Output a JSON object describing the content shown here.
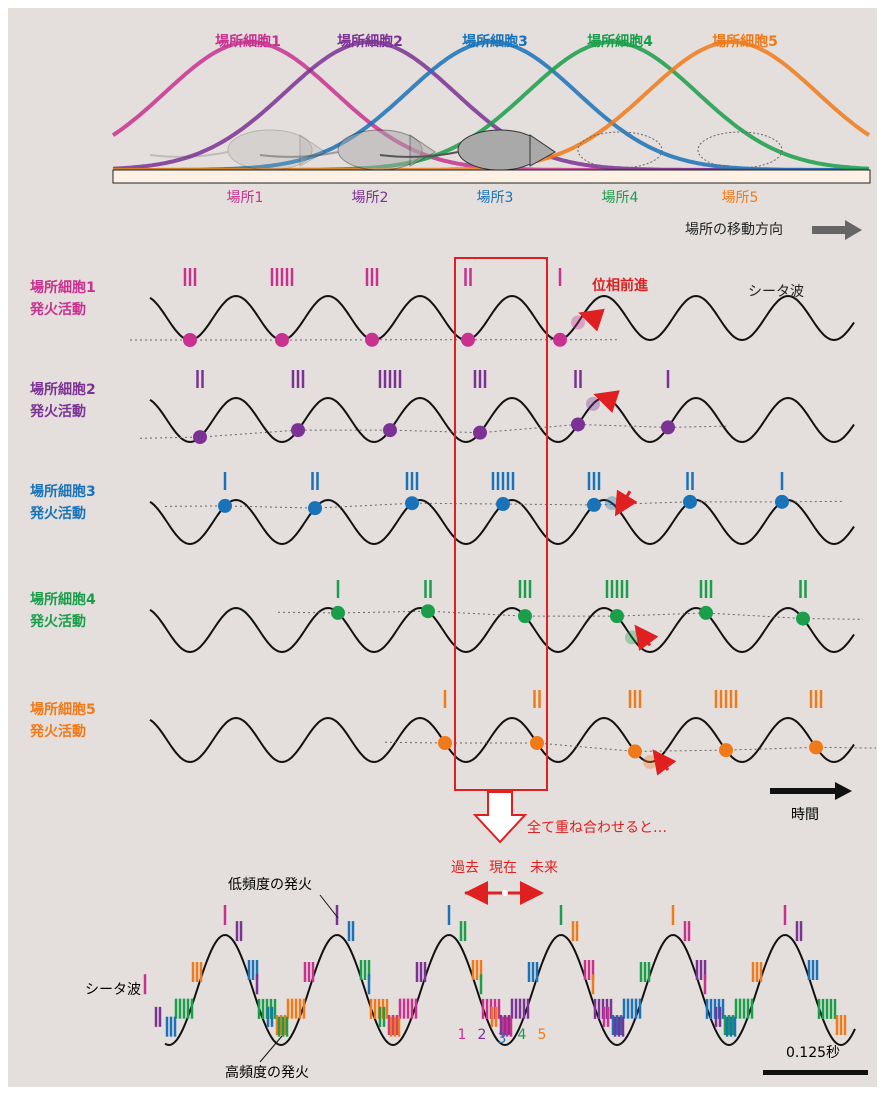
{
  "place_cells": [
    {
      "label": "場所細胞1",
      "color": "#c8318f"
    },
    {
      "label": "場所細胞2",
      "color": "#7b3294"
    },
    {
      "label": "場所細胞3",
      "color": "#1a73b8"
    },
    {
      "label": "場所細胞4",
      "color": "#1a9e4a"
    },
    {
      "label": "場所細胞5",
      "color": "#f07a1a"
    }
  ],
  "places": [
    "場所1",
    "場所2",
    "場所3",
    "場所4",
    "場所5"
  ],
  "direction_label": "場所の移動方向",
  "rows": [
    {
      "name": "場所細胞1",
      "activity": "発火活動",
      "burst_counts": [
        3,
        5,
        3,
        2,
        1
      ]
    },
    {
      "name": "場所細胞2",
      "activity": "発火活動",
      "burst_counts": [
        2,
        3,
        5,
        3,
        2,
        1
      ]
    },
    {
      "name": "場所細胞3",
      "activity": "発火活動",
      "burst_counts": [
        1,
        2,
        3,
        5,
        3,
        2,
        1
      ]
    },
    {
      "name": "場所細胞4",
      "activity": "発火活動",
      "burst_counts": [
        1,
        2,
        3,
        5,
        3,
        2
      ]
    },
    {
      "name": "場所細胞5",
      "activity": "発火活動",
      "burst_counts": [
        1,
        2,
        3,
        5,
        3
      ]
    }
  ],
  "phase_advance_label": "位相前進",
  "theta_label": "シータ波",
  "time_label": "時間",
  "overlay_label": "全て重ね合わせると…",
  "past": "過去",
  "present": "現在",
  "future": "未来",
  "low_freq_label": "低頻度の発火",
  "bottom_theta_label": "シータ波",
  "high_freq_label": "高頻度の発火",
  "cell_numbers": [
    "1",
    "2",
    "3",
    "4",
    "5"
  ],
  "scale_label": "0.125秒"
}
